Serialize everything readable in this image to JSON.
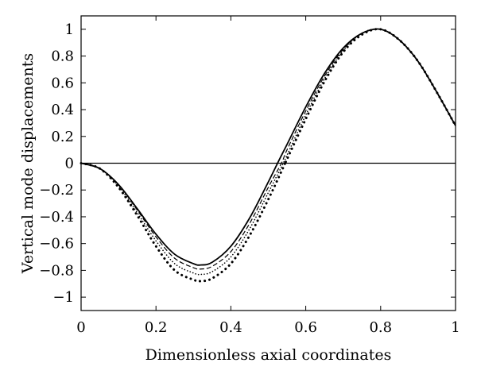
{
  "chart_data": {
    "type": "line",
    "title": "",
    "xlabel": "Dimensionless axial coordinates",
    "ylabel": "Vertical mode displacements",
    "xlim": [
      0,
      1
    ],
    "ylim": [
      -1.1,
      1.1
    ],
    "xticks": [
      0,
      0.2,
      0.4,
      0.6,
      0.8,
      1
    ],
    "xtick_labels": [
      "0",
      "0.2",
      "0.4",
      "0.6",
      "0.8",
      "1"
    ],
    "yticks": [
      1,
      0.8,
      0.6,
      0.4,
      0.2,
      0,
      -0.2,
      -0.4,
      -0.6,
      -0.8,
      -1
    ],
    "ytick_labels": [
      "1",
      "0.8",
      "0.6",
      "0.4",
      "0.2",
      "0",
      "−0.2",
      "−0.4",
      "−0.6",
      "−0.8",
      "−1"
    ],
    "grid": false,
    "legend": "none",
    "series": [
      {
        "style": "solid",
        "x": [
          0,
          0.05,
          0.1,
          0.15,
          0.2,
          0.25,
          0.3,
          0.32,
          0.35,
          0.4,
          0.45,
          0.5,
          0.53,
          0.55,
          0.6,
          0.65,
          0.7,
          0.75,
          0.8,
          0.85,
          0.9,
          0.95,
          1.0
        ],
        "y": [
          0,
          -0.04,
          -0.16,
          -0.34,
          -0.53,
          -0.68,
          -0.75,
          -0.76,
          -0.74,
          -0.62,
          -0.41,
          -0.14,
          0.03,
          0.14,
          0.42,
          0.67,
          0.86,
          0.97,
          1.0,
          0.92,
          0.76,
          0.53,
          0.28
        ]
      },
      {
        "style": "dashed",
        "x": [
          0,
          0.05,
          0.1,
          0.15,
          0.2,
          0.25,
          0.3,
          0.32,
          0.35,
          0.4,
          0.45,
          0.5,
          0.535,
          0.55,
          0.6,
          0.65,
          0.7,
          0.75,
          0.8,
          0.85,
          0.9,
          0.95,
          1.0
        ],
        "y": [
          0,
          -0.04,
          -0.16,
          -0.35,
          -0.55,
          -0.71,
          -0.78,
          -0.79,
          -0.77,
          -0.66,
          -0.45,
          -0.18,
          0.0,
          0.1,
          0.39,
          0.65,
          0.85,
          0.97,
          1.0,
          0.92,
          0.76,
          0.53,
          0.28
        ]
      },
      {
        "style": "dotted-light",
        "x": [
          0,
          0.05,
          0.1,
          0.15,
          0.2,
          0.25,
          0.3,
          0.32,
          0.35,
          0.4,
          0.45,
          0.5,
          0.54,
          0.55,
          0.6,
          0.65,
          0.7,
          0.75,
          0.8,
          0.85,
          0.9,
          0.95,
          1.0
        ],
        "y": [
          0,
          -0.04,
          -0.17,
          -0.37,
          -0.58,
          -0.75,
          -0.82,
          -0.83,
          -0.81,
          -0.7,
          -0.49,
          -0.22,
          0.0,
          0.06,
          0.36,
          0.63,
          0.84,
          0.97,
          1.0,
          0.92,
          0.76,
          0.53,
          0.28
        ]
      },
      {
        "style": "dotted-heavy",
        "x": [
          0,
          0.05,
          0.1,
          0.15,
          0.2,
          0.25,
          0.3,
          0.32,
          0.35,
          0.4,
          0.45,
          0.5,
          0.545,
          0.55,
          0.6,
          0.65,
          0.7,
          0.75,
          0.8,
          0.85,
          0.9,
          0.95,
          1.0
        ],
        "y": [
          0,
          -0.04,
          -0.18,
          -0.39,
          -0.62,
          -0.8,
          -0.87,
          -0.88,
          -0.86,
          -0.75,
          -0.54,
          -0.27,
          0.0,
          0.03,
          0.33,
          0.61,
          0.83,
          0.96,
          1.0,
          0.92,
          0.76,
          0.53,
          0.28
        ]
      },
      {
        "style": "zero-line",
        "x": [
          0,
          1
        ],
        "y": [
          0,
          0
        ]
      }
    ]
  }
}
